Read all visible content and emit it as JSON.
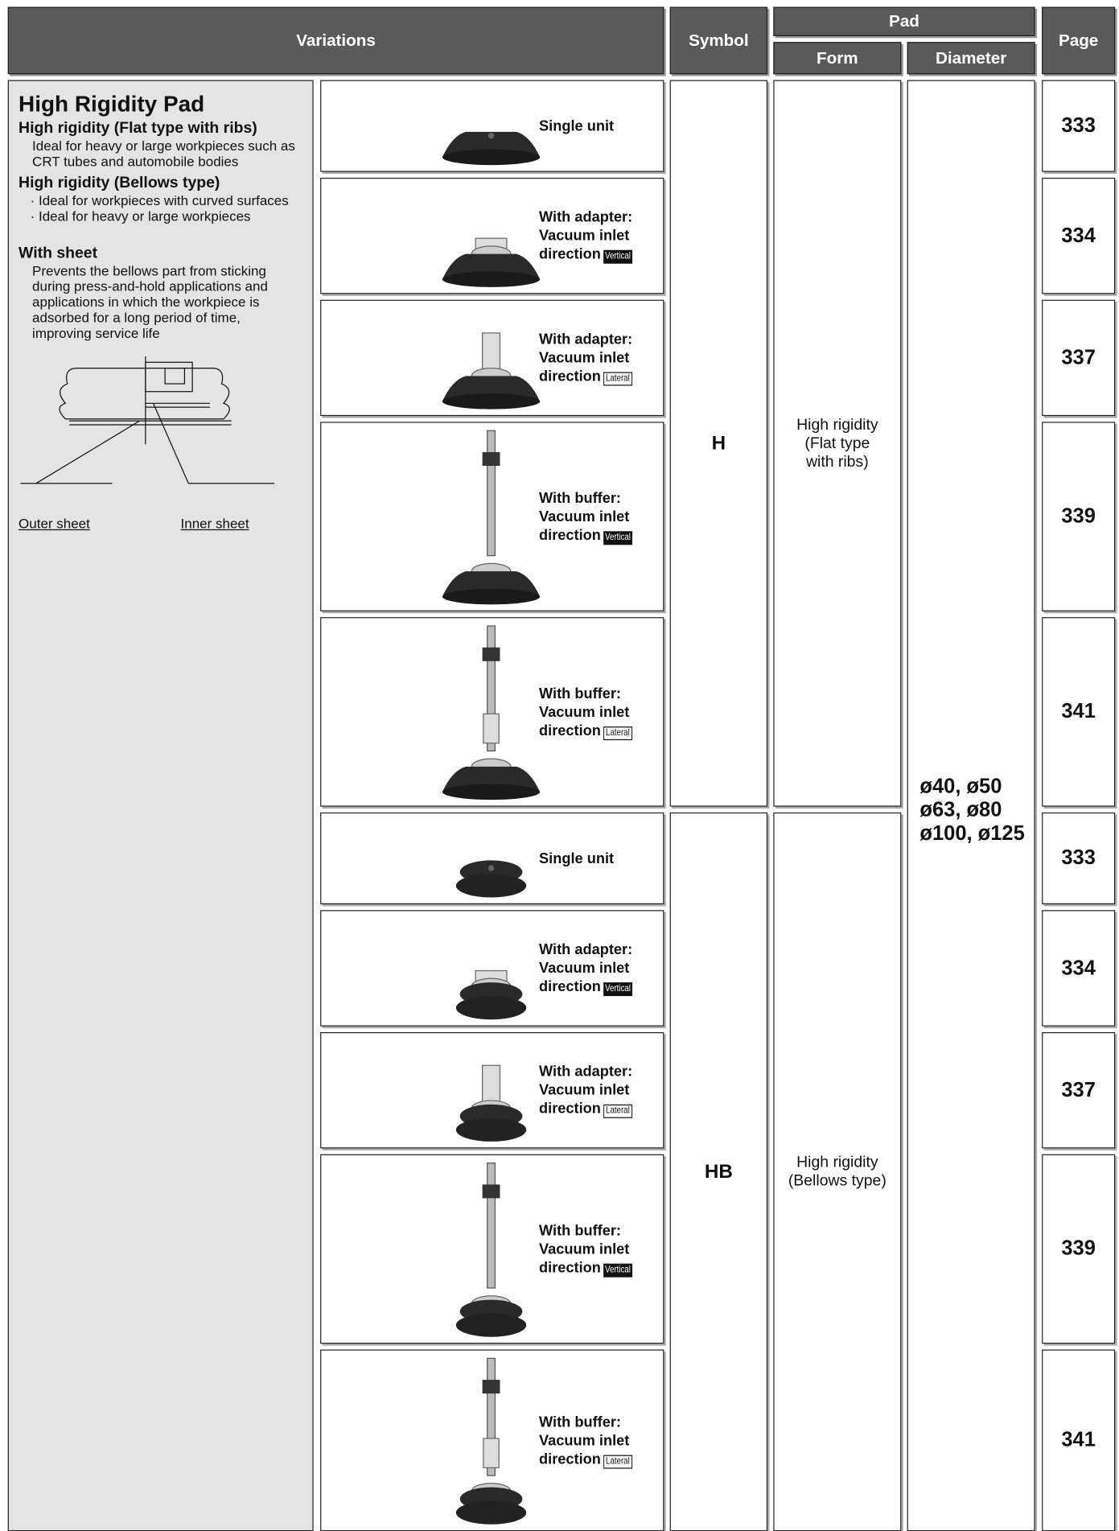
{
  "header": {
    "variations": "Variations",
    "symbol": "Symbol",
    "pad": "Pad",
    "form": "Form",
    "diameter": "Diameter",
    "page": "Page"
  },
  "panel": {
    "title": "High Rigidity Pad",
    "flat_heading": "High rigidity (Flat type with ribs)",
    "flat_text": "Ideal for heavy or large workpieces such as CRT tubes and automobile bodies",
    "bellows_heading": "High rigidity (Bellows type)",
    "bellows_items": [
      "· Ideal for workpieces with curved surfaces",
      "· Ideal for heavy or large workpieces"
    ],
    "sheet_heading": "With sheet",
    "sheet_text": "Prevents the bellows part from sticking during press-and-hold applications and applications in which the workpiece is adsorbed for a long period of time, improving service life",
    "outer_sheet": "Outer sheet",
    "inner_sheet": "Inner sheet"
  },
  "groups": [
    {
      "symbol": "H",
      "form": [
        "High rigidity",
        "(Flat type",
        "with ribs)"
      ],
      "rows": [
        {
          "lines": [
            "Single unit"
          ],
          "page": 333
        },
        {
          "lines": [
            "With adapter:",
            "Vacuum inlet",
            "direction"
          ],
          "tag": "Vertical",
          "page": 334
        },
        {
          "lines": [
            "With adapter:",
            "Vacuum inlet",
            "direction"
          ],
          "tag": "Lateral",
          "page": 337
        },
        {
          "lines": [
            "With buffer:",
            "Vacuum inlet",
            "direction"
          ],
          "tag": "Vertical",
          "page": 339
        },
        {
          "lines": [
            "With buffer:",
            "Vacuum inlet",
            "direction"
          ],
          "tag": "Lateral",
          "page": 341
        }
      ]
    },
    {
      "symbol": "HB",
      "form": [
        "High rigidity",
        "(Bellows type)"
      ],
      "rows": [
        {
          "lines": [
            "Single unit"
          ],
          "page": 333
        },
        {
          "lines": [
            "With adapter:",
            "Vacuum inlet",
            "direction"
          ],
          "tag": "Vertical",
          "page": 334
        },
        {
          "lines": [
            "With adapter:",
            "Vacuum inlet",
            "direction"
          ],
          "tag": "Lateral",
          "page": 337
        },
        {
          "lines": [
            "With buffer:",
            "Vacuum inlet",
            "direction"
          ],
          "tag": "Vertical",
          "page": 339
        },
        {
          "lines": [
            "With buffer:",
            "Vacuum inlet",
            "direction"
          ],
          "tag": "Lateral",
          "page": 341
        }
      ]
    }
  ],
  "diameter": [
    "ø40, ø50",
    "ø63, ø80",
    "ø100, ø125"
  ]
}
